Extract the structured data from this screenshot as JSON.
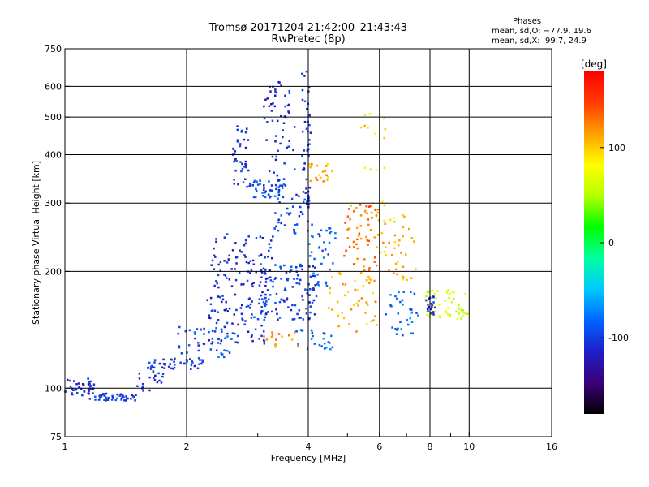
{
  "title": "Tromsø 20171204 21:42:00–21:43:43",
  "subtitle": "RwPretec (8p)",
  "stats": {
    "heading": "Phases",
    "o_mode": "mean, sd,O: −77.9, 19.6",
    "x_mode": "mean, sd,X:  99.7, 24.9"
  },
  "chart_data": {
    "type": "scatter",
    "title": "Tromsø 20171204 21:42:00–21:43:43",
    "subtitle": "RwPretec (8p)",
    "xlabel": "Frequency [MHz]",
    "ylabel": "Stationary phase Virtual Height [km]",
    "x_scale": "log",
    "y_scale": "log",
    "xlim": [
      1,
      16
    ],
    "ylim": [
      75,
      750
    ],
    "x_ticks": [
      1,
      2,
      4,
      6,
      8,
      10,
      16
    ],
    "x_minor_ticks": [
      3,
      5,
      7,
      9
    ],
    "y_ticks": [
      75,
      100,
      200,
      300,
      400,
      500,
      600,
      750
    ],
    "grid": true,
    "colorbar": {
      "label": "[deg]",
      "range": [
        -180,
        180
      ],
      "ticks": [
        100,
        0,
        -100
      ],
      "colors": [
        "#000000",
        "#3b007a",
        "#1e1ec8",
        "#0064ff",
        "#00c8ff",
        "#00ffa0",
        "#00ff00",
        "#b4ff00",
        "#ffff00",
        "#ffa000",
        "#ff3c00",
        "#ff0000"
      ]
    },
    "clusters": [
      {
        "x": [
          1.0,
          1.18
        ],
        "y": [
          95,
          106
        ],
        "phase": -110,
        "n": 40
      },
      {
        "x": [
          1.15,
          1.5
        ],
        "y": [
          93,
          97
        ],
        "phase": -105,
        "n": 45
      },
      {
        "x": [
          1.5,
          1.75
        ],
        "y": [
          98,
          112
        ],
        "phase": -105,
        "n": 20
      },
      {
        "x": [
          1.6,
          2.2
        ],
        "y": [
          112,
          120
        ],
        "phase": -105,
        "n": 45
      },
      {
        "x": [
          1.9,
          2.6
        ],
        "y": [
          120,
          145
        ],
        "phase": -90,
        "n": 40
      },
      {
        "x": [
          2.2,
          3.2
        ],
        "y": [
          130,
          175
        ],
        "phase": -105,
        "n": 80
      },
      {
        "x": [
          2.3,
          3.3
        ],
        "y": [
          170,
          250
        ],
        "phase": -110,
        "n": 90
      },
      {
        "x": [
          2.6,
          2.85
        ],
        "y": [
          330,
          480
        ],
        "phase": -110,
        "n": 40
      },
      {
        "x": [
          2.85,
          3.5
        ],
        "y": [
          310,
          345
        ],
        "phase": -95,
        "n": 45
      },
      {
        "x": [
          3.1,
          3.7
        ],
        "y": [
          330,
          620
        ],
        "phase": -110,
        "n": 60
      },
      {
        "x": [
          3.0,
          4.2
        ],
        "y": [
          150,
          210
        ],
        "phase": -100,
        "n": 110
      },
      {
        "x": [
          3.3,
          4.1
        ],
        "y": [
          250,
          320
        ],
        "phase": -95,
        "n": 40
      },
      {
        "x": [
          3.85,
          4.05
        ],
        "y": [
          300,
          660
        ],
        "phase": -100,
        "n": 40
      },
      {
        "x": [
          4.0,
          4.7
        ],
        "y": [
          180,
          260
        ],
        "phase": -90,
        "n": 40
      },
      {
        "x": [
          3.7,
          4.6
        ],
        "y": [
          126,
          142
        ],
        "phase": -80,
        "n": 25
      },
      {
        "x": [
          4.0,
          4.6
        ],
        "y": [
          340,
          380
        ],
        "phase": 110,
        "n": 20
      },
      {
        "x": [
          3.1,
          3.8
        ],
        "y": [
          126,
          140
        ],
        "phase": 120,
        "n": 15
      },
      {
        "x": [
          4.4,
          5.9
        ],
        "y": [
          140,
          200
        ],
        "phase": 110,
        "n": 50
      },
      {
        "x": [
          4.9,
          6.0
        ],
        "y": [
          200,
          300
        ],
        "phase": 130,
        "n": 60
      },
      {
        "x": [
          5.3,
          6.2
        ],
        "y": [
          250,
          520
        ],
        "phase": 90,
        "n": 20
      },
      {
        "x": [
          6.0,
          7.4
        ],
        "y": [
          190,
          280
        ],
        "phase": 110,
        "n": 40
      },
      {
        "x": [
          6.2,
          7.5
        ],
        "y": [
          135,
          180
        ],
        "phase": -80,
        "n": 35
      },
      {
        "x": [
          7.8,
          9.9
        ],
        "y": [
          150,
          180
        ],
        "phase": 60,
        "n": 50
      },
      {
        "x": [
          7.8,
          8.4
        ],
        "y": [
          155,
          175
        ],
        "phase": -110,
        "n": 20
      }
    ]
  }
}
